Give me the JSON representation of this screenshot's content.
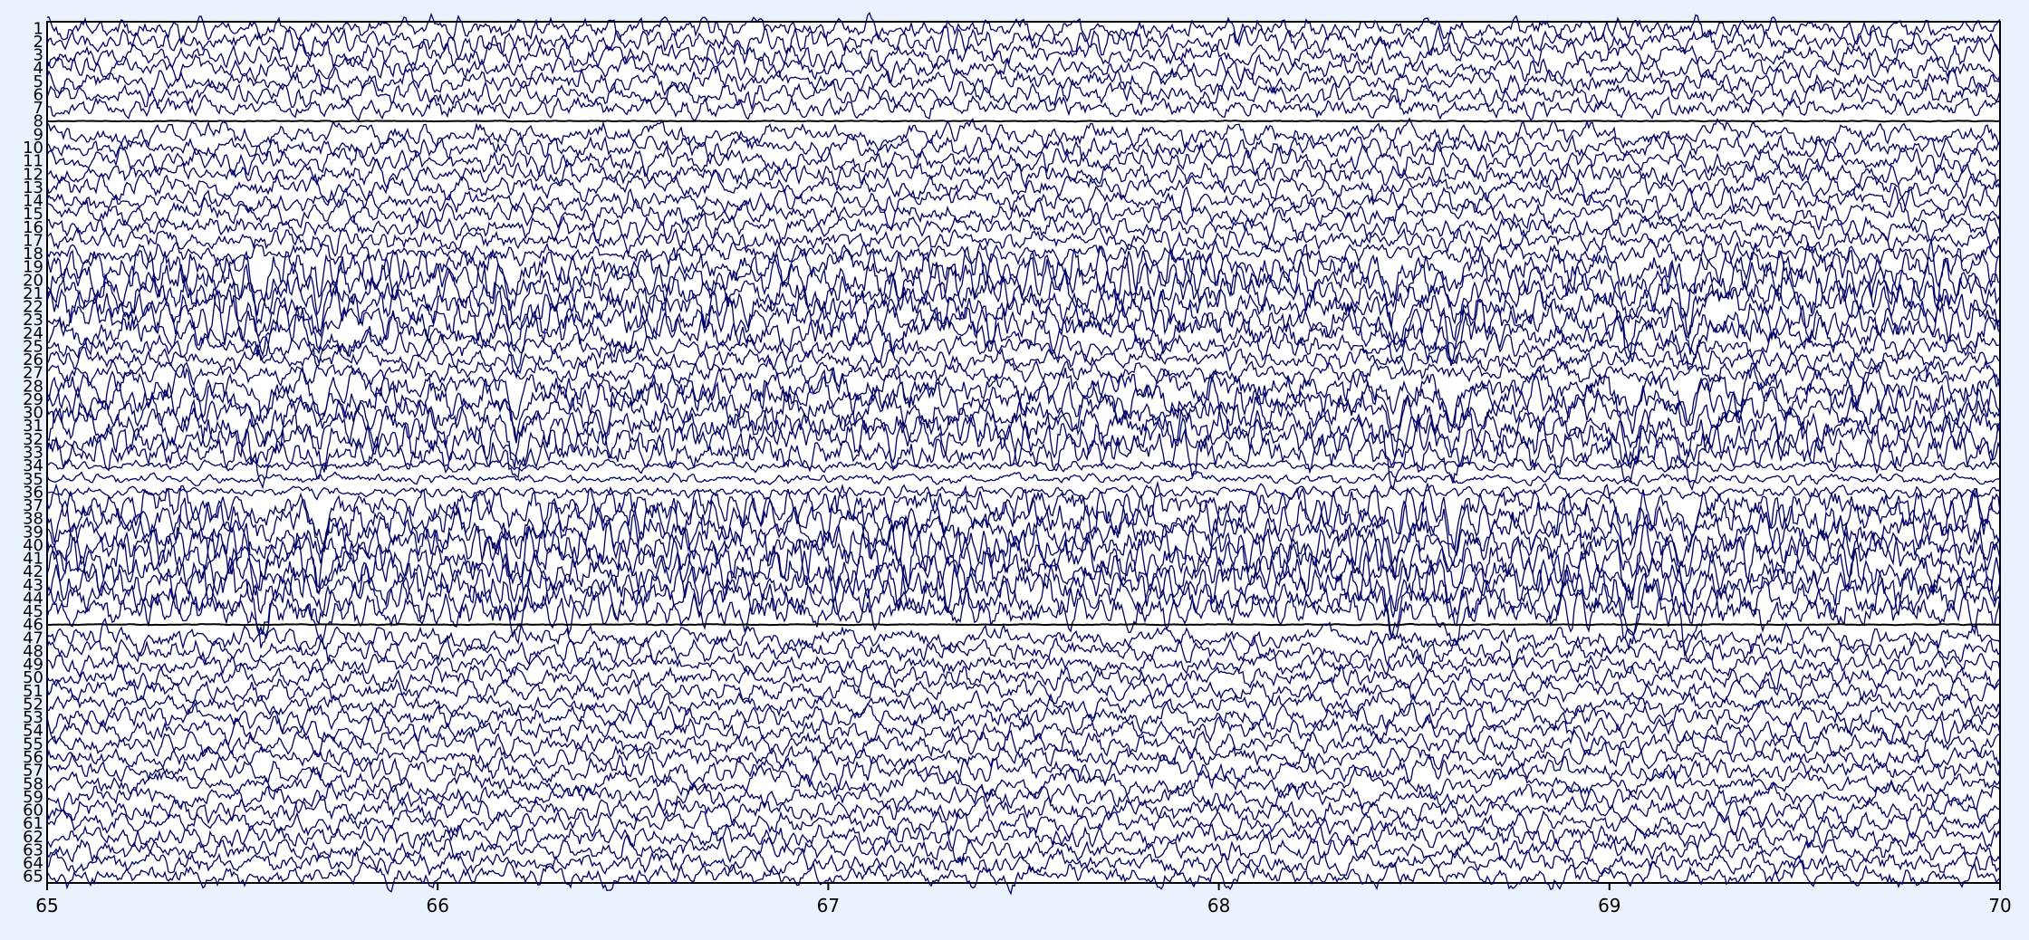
{
  "colors": {
    "background": "#eaf2fe",
    "plot_background": "#ffffff",
    "trace": "#000066",
    "axis": "#000000"
  },
  "chart_data": {
    "type": "line",
    "title": "",
    "xlabel": "",
    "ylabel": "",
    "xlim": [
      65,
      70
    ],
    "x_ticks": [
      "65",
      "66",
      "67",
      "68",
      "69",
      "70"
    ],
    "channel_labels": [
      "1",
      "2",
      "3",
      "4",
      "5",
      "6",
      "7",
      "8",
      "9",
      "10",
      "11",
      "12",
      "13",
      "14",
      "15",
      "16",
      "17",
      "18",
      "19",
      "20",
      "21",
      "22",
      "23",
      "24",
      "25",
      "26",
      "27",
      "28",
      "29",
      "30",
      "31",
      "32",
      "33",
      "34",
      "35",
      "36",
      "37",
      "38",
      "39",
      "40",
      "41",
      "42",
      "43",
      "44",
      "45",
      "46",
      "47",
      "48",
      "49",
      "50",
      "51",
      "52",
      "53",
      "54",
      "55",
      "56",
      "57",
      "58",
      "59",
      "60",
      "61",
      "62",
      "63",
      "64",
      "65"
    ],
    "flat_channels": [
      "8",
      "46"
    ],
    "high_amplitude_channels": [
      "19",
      "20",
      "21",
      "22",
      "23",
      "24",
      "28",
      "29",
      "30",
      "31",
      "32",
      "33",
      "37",
      "38",
      "39",
      "40",
      "41",
      "42",
      "43",
      "44",
      "45"
    ],
    "low_amplitude_channels": [
      "34",
      "35",
      "36"
    ],
    "grid": false,
    "legend": "none"
  }
}
